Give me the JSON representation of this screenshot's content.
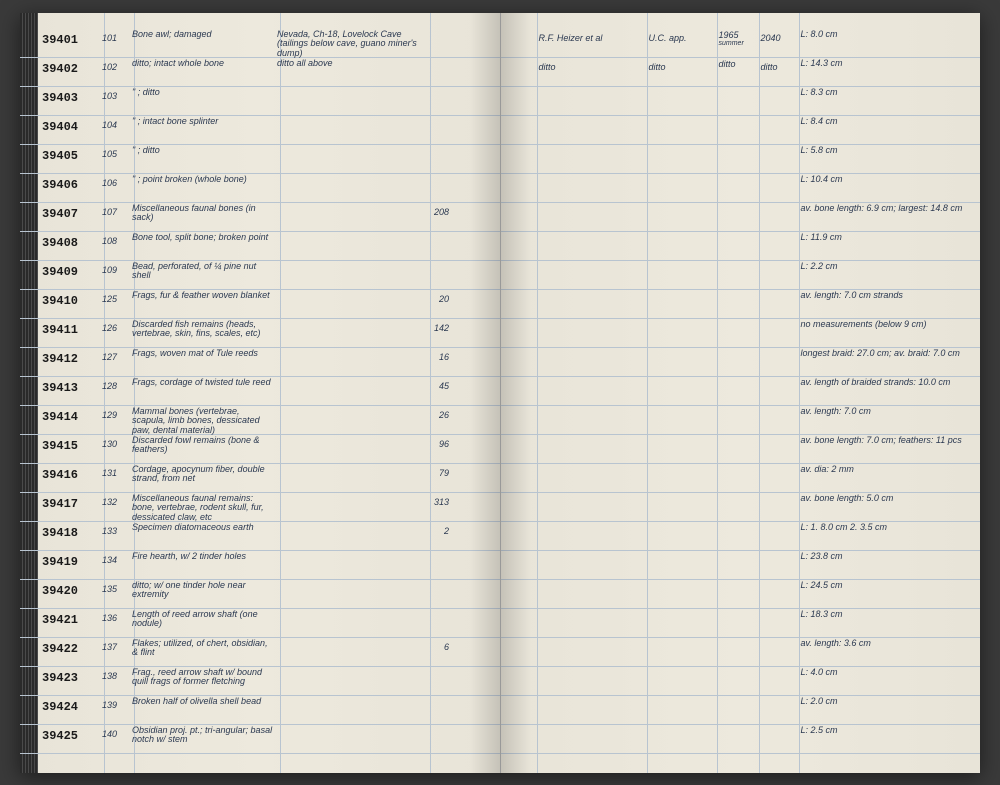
{
  "ledger": {
    "ink_color": "#2a3850",
    "paper_color": "#e8e4d8",
    "rule_color": "#b8c4d0",
    "font_family": "cursive",
    "rows": [
      {
        "id": "39401",
        "num": "101",
        "desc": "Bone awl; damaged",
        "loc": "Nevada, Ch-18, Lovelock Cave (tailings below cave, guano miner's dump)",
        "qty": "",
        "collector": "R.F. Heizer et al",
        "inst": "U.C. app.",
        "year": "1965",
        "year_note": "summer",
        "code": "2040",
        "meas": "L: 8.0 cm"
      },
      {
        "id": "39402",
        "num": "102",
        "desc": "ditto; intact whole bone",
        "loc": "ditto all above",
        "qty": "",
        "collector": "ditto",
        "inst": "ditto",
        "year": "ditto",
        "year_note": "",
        "code": "ditto",
        "meas": "L: 14.3 cm"
      },
      {
        "id": "39403",
        "num": "103",
        "desc": "\" ; ditto",
        "loc": "",
        "qty": "",
        "collector": "",
        "inst": "",
        "year": "",
        "year_note": "",
        "code": "",
        "meas": "L: 8.3 cm"
      },
      {
        "id": "39404",
        "num": "104",
        "desc": "\" ; intact bone splinter",
        "loc": "",
        "qty": "",
        "collector": "",
        "inst": "",
        "year": "",
        "year_note": "",
        "code": "",
        "meas": "L: 8.4 cm"
      },
      {
        "id": "39405",
        "num": "105",
        "desc": "\" ; ditto",
        "loc": "",
        "qty": "",
        "collector": "",
        "inst": "",
        "year": "",
        "year_note": "",
        "code": "",
        "meas": "L: 5.8 cm"
      },
      {
        "id": "39406",
        "num": "106",
        "desc": "\" ; point broken (whole bone)",
        "loc": "",
        "qty": "",
        "collector": "",
        "inst": "",
        "year": "",
        "year_note": "",
        "code": "",
        "meas": "L: 10.4 cm"
      },
      {
        "id": "39407",
        "num": "107",
        "desc": "Miscellaneous faunal bones (in sack)",
        "loc": "",
        "qty": "208",
        "collector": "",
        "inst": "",
        "year": "",
        "year_note": "",
        "code": "",
        "meas": "av. bone length: 6.9 cm; largest: 14.8 cm"
      },
      {
        "id": "39408",
        "num": "108",
        "desc": "Bone tool, split bone; broken point",
        "loc": "",
        "qty": "",
        "collector": "",
        "inst": "",
        "year": "",
        "year_note": "",
        "code": "",
        "meas": "L: 11.9 cm"
      },
      {
        "id": "39409",
        "num": "109",
        "desc": "Bead, perforated, of ¼ pine nut shell",
        "loc": "",
        "qty": "",
        "collector": "",
        "inst": "",
        "year": "",
        "year_note": "",
        "code": "",
        "meas": "L: 2.2 cm"
      },
      {
        "id": "39410",
        "num": "125",
        "desc": "Frags, fur & feather woven blanket",
        "loc": "",
        "qty": "20",
        "collector": "",
        "inst": "",
        "year": "",
        "year_note": "",
        "code": "",
        "meas": "av. length: 7.0 cm strands"
      },
      {
        "id": "39411",
        "num": "126",
        "desc": "Discarded fish remains (heads, vertebrae, skin, fins, scales, etc)",
        "loc": "",
        "qty": "142",
        "collector": "",
        "inst": "",
        "year": "",
        "year_note": "",
        "code": "",
        "meas": "no measurements (below 9 cm)"
      },
      {
        "id": "39412",
        "num": "127",
        "desc": "Frags, woven mat of Tule reeds",
        "loc": "",
        "qty": "16",
        "collector": "",
        "inst": "",
        "year": "",
        "year_note": "",
        "code": "",
        "meas": "longest braid: 27.0 cm; av. braid: 7.0 cm"
      },
      {
        "id": "39413",
        "num": "128",
        "desc": "Frags, cordage of twisted tule reed",
        "loc": "",
        "qty": "45",
        "collector": "",
        "inst": "",
        "year": "",
        "year_note": "",
        "code": "",
        "meas": "av. length of braided strands: 10.0 cm"
      },
      {
        "id": "39414",
        "num": "129",
        "desc": "Mammal bones (vertebrae, scapula, limb bones, dessicated paw, dental material)",
        "loc": "",
        "qty": "26",
        "collector": "",
        "inst": "",
        "year": "",
        "year_note": "",
        "code": "",
        "meas": "av. length: 7.0 cm"
      },
      {
        "id": "39415",
        "num": "130",
        "desc": "Discarded fowl remains (bone & feathers)",
        "loc": "",
        "qty": "96",
        "collector": "",
        "inst": "",
        "year": "",
        "year_note": "",
        "code": "",
        "meas": "av. bone length: 7.0 cm; feathers: 11 pcs"
      },
      {
        "id": "39416",
        "num": "131",
        "desc": "Cordage, apocynum fiber, double strand, from net",
        "loc": "",
        "qty": "79",
        "collector": "",
        "inst": "",
        "year": "",
        "year_note": "",
        "code": "",
        "meas": "av. dia: 2 mm"
      },
      {
        "id": "39417",
        "num": "132",
        "desc": "Miscellaneous faunal remains: bone, vertebrae, rodent skull, fur, dessicated claw, etc",
        "loc": "",
        "qty": "313",
        "collector": "",
        "inst": "",
        "year": "",
        "year_note": "",
        "code": "",
        "meas": "av. bone length: 5.0 cm"
      },
      {
        "id": "39418",
        "num": "133",
        "desc": "Specimen diatomaceous earth",
        "loc": "",
        "qty": "2",
        "collector": "",
        "inst": "",
        "year": "",
        "year_note": "",
        "code": "",
        "meas": "L: 1. 8.0 cm  2. 3.5 cm"
      },
      {
        "id": "39419",
        "num": "134",
        "desc": "Fire hearth, w/ 2 tinder holes",
        "loc": "",
        "qty": "",
        "collector": "",
        "inst": "",
        "year": "",
        "year_note": "",
        "code": "",
        "meas": "L: 23.8 cm"
      },
      {
        "id": "39420",
        "num": "135",
        "desc": "ditto; w/ one tinder hole near extremity",
        "loc": "",
        "qty": "",
        "collector": "",
        "inst": "",
        "year": "",
        "year_note": "",
        "code": "",
        "meas": "L: 24.5 cm"
      },
      {
        "id": "39421",
        "num": "136",
        "desc": "Length of reed arrow shaft (one nodule)",
        "loc": "",
        "qty": "",
        "collector": "",
        "inst": "",
        "year": "",
        "year_note": "",
        "code": "",
        "meas": "L: 18.3 cm"
      },
      {
        "id": "39422",
        "num": "137",
        "desc": "Flakes; utilized, of chert, obsidian, & flint",
        "loc": "",
        "qty": "6",
        "collector": "",
        "inst": "",
        "year": "",
        "year_note": "",
        "code": "",
        "meas": "av. length: 3.6 cm"
      },
      {
        "id": "39423",
        "num": "138",
        "desc": "Frag., reed arrow shaft w/ bound quill frags of former fletching",
        "loc": "",
        "qty": "",
        "collector": "",
        "inst": "",
        "year": "",
        "year_note": "",
        "code": "",
        "meas": "L: 4.0 cm"
      },
      {
        "id": "39424",
        "num": "139",
        "desc": "Broken half of olivella shell bead",
        "loc": "",
        "qty": "",
        "collector": "",
        "inst": "",
        "year": "",
        "year_note": "",
        "code": "",
        "meas": "L: 2.0 cm"
      },
      {
        "id": "39425",
        "num": "140",
        "desc": "Obsidian proj. pt.; tri-angular; basal notch w/ stem",
        "loc": "",
        "qty": "",
        "collector": "",
        "inst": "",
        "year": "",
        "year_note": "",
        "code": "",
        "meas": "L: 2.5 cm"
      }
    ]
  }
}
